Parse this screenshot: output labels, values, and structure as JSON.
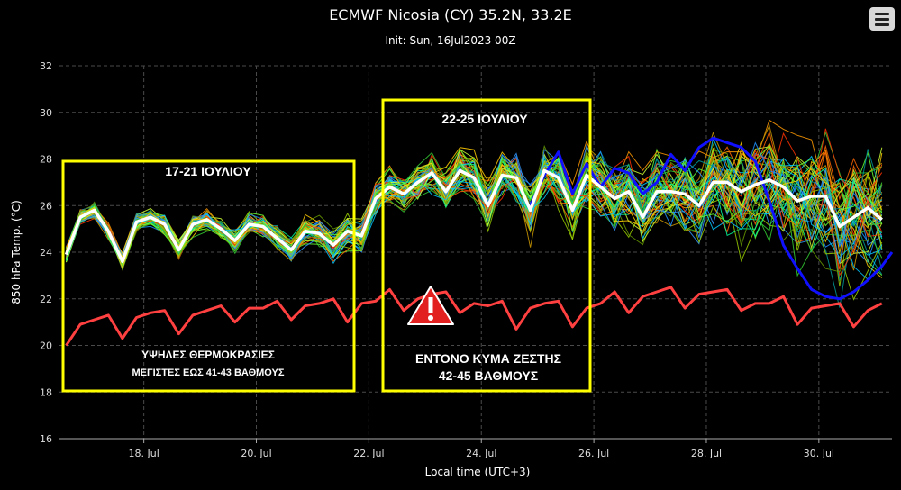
{
  "title": "ECMWF Nicosia (CY) 35.2N, 33.2E",
  "subtitle": "Init: Sun, 16Jul2023 00Z",
  "menu_icon": "hamburger-menu-icon",
  "colors": {
    "background": "#000000",
    "grid": "#555555",
    "mean": "#ffffff",
    "climate": "#ff4040",
    "highlight": "#ffff00",
    "control": "#1010ff"
  },
  "chart_data": {
    "type": "line",
    "xlabel": "Local time (UTC+3)",
    "ylabel": "850 hPa Temp. (°C)",
    "ylim": [
      16,
      32
    ],
    "yticks": [
      16,
      18,
      20,
      22,
      24,
      26,
      28,
      30,
      32
    ],
    "xlim_days": [
      16.5,
      31.3
    ],
    "xticks": [
      {
        "day": 18,
        "label": "18. Jul"
      },
      {
        "day": 20,
        "label": "20. Jul"
      },
      {
        "day": 22,
        "label": "22. Jul"
      },
      {
        "day": 24,
        "label": "24. Jul"
      },
      {
        "day": 26,
        "label": "26. Jul"
      },
      {
        "day": 28,
        "label": "28. Jul"
      },
      {
        "day": 30,
        "label": "30. Jul"
      }
    ],
    "grid": true,
    "legend": "none",
    "ensemble_members": 50,
    "series": [
      {
        "role": "ensemble-mean",
        "color": "#ffffff",
        "x": [
          16.62,
          16.87,
          17.12,
          17.37,
          17.62,
          17.87,
          18.12,
          18.37,
          18.62,
          18.87,
          19.12,
          19.37,
          19.62,
          19.87,
          20.12,
          20.37,
          20.62,
          20.87,
          21.12,
          21.37,
          21.62,
          21.87,
          22.12,
          22.37,
          22.62,
          22.87,
          23.12,
          23.37,
          23.62,
          23.87,
          24.12,
          24.37,
          24.62,
          24.87,
          25.12,
          25.37,
          25.62,
          25.87,
          26.12,
          26.37,
          26.62,
          26.87,
          27.12,
          27.37,
          27.62,
          27.87,
          28.12,
          28.37,
          28.62,
          28.87,
          29.12,
          29.37,
          29.62,
          29.87,
          30.12,
          30.37,
          30.62,
          30.87,
          31.12
        ],
        "y": [
          23.9,
          25.5,
          25.8,
          24.9,
          23.6,
          25.3,
          25.5,
          25.2,
          24.1,
          25.2,
          25.4,
          25.0,
          24.5,
          25.2,
          25.1,
          24.6,
          24.1,
          24.9,
          24.8,
          24.3,
          24.9,
          24.7,
          26.3,
          26.8,
          26.5,
          27.0,
          27.4,
          26.6,
          27.5,
          27.2,
          26.0,
          27.3,
          27.2,
          25.8,
          27.5,
          27.2,
          25.8,
          27.3,
          26.8,
          26.3,
          26.6,
          25.5,
          26.6,
          26.6,
          26.5,
          26.0,
          27.0,
          27.0,
          26.6,
          26.9,
          27.1,
          26.8,
          26.2,
          26.4,
          26.4,
          25.1,
          25.5,
          25.9,
          25.4
        ]
      },
      {
        "role": "climatology",
        "color": "#ff4040",
        "x": [
          16.62,
          16.87,
          17.12,
          17.37,
          17.62,
          17.87,
          18.12,
          18.37,
          18.62,
          18.87,
          19.12,
          19.37,
          19.62,
          19.87,
          20.12,
          20.37,
          20.62,
          20.87,
          21.12,
          21.37,
          21.62,
          21.87,
          22.12,
          22.37,
          22.62,
          22.87,
          23.12,
          23.37,
          23.62,
          23.87,
          24.12,
          24.37,
          24.62,
          24.87,
          25.12,
          25.37,
          25.62,
          25.87,
          26.12,
          26.37,
          26.62,
          26.87,
          27.12,
          27.37,
          27.62,
          27.87,
          28.12,
          28.37,
          28.62,
          28.87,
          29.12,
          29.37,
          29.62,
          29.87,
          30.12,
          30.37,
          30.62,
          30.87,
          31.12
        ],
        "y": [
          20.0,
          20.9,
          21.1,
          21.3,
          20.3,
          21.2,
          21.4,
          21.5,
          20.5,
          21.3,
          21.5,
          21.7,
          21.0,
          21.6,
          21.6,
          21.9,
          21.1,
          21.7,
          21.8,
          22.0,
          21.0,
          21.8,
          21.9,
          22.4,
          21.5,
          22.0,
          22.2,
          22.3,
          21.4,
          21.8,
          21.7,
          21.9,
          20.7,
          21.6,
          21.8,
          21.9,
          20.8,
          21.6,
          21.8,
          22.3,
          21.4,
          22.1,
          22.3,
          22.5,
          21.6,
          22.2,
          22.3,
          22.4,
          21.5,
          21.8,
          21.8,
          22.1,
          20.9,
          21.6,
          21.7,
          21.8,
          20.8,
          21.5,
          21.8
        ]
      },
      {
        "role": "control",
        "color": "#1010ff",
        "x": [
          24.87,
          25.12,
          25.37,
          25.62,
          25.87,
          26.12,
          26.37,
          26.62,
          26.87,
          27.12,
          27.37,
          27.62,
          27.87,
          28.12,
          28.37,
          28.62,
          28.87,
          29.12,
          29.37,
          29.62,
          29.87,
          30.12,
          30.37,
          30.62,
          30.87,
          31.12,
          31.3
        ],
        "y": [
          26.0,
          27.3,
          28.3,
          26.5,
          27.8,
          26.8,
          27.6,
          27.4,
          26.5,
          27.0,
          28.2,
          27.5,
          28.5,
          28.9,
          28.7,
          28.5,
          27.9,
          26.2,
          24.3,
          23.3,
          22.4,
          22.1,
          22.0,
          22.3,
          22.8,
          23.4,
          24.0
        ]
      }
    ]
  },
  "annotations": {
    "box1": {
      "heading": "17-21 ΙΟΥΛΙΟΥ",
      "line1": "ΥΨΗΛΕΣ ΘΕΡΜΟΚΡΑΣΙΕΣ",
      "line2": "ΜΕΓΙΣΤΕΣ ΕΩΣ 41-43 ΒΑΘΜΟΥΣ"
    },
    "box2": {
      "heading": "22-25 ΙΟΥΛΙΟΥ",
      "line1": "ΕΝΤΟΝΟ ΚΥΜΑ ΖΕΣΤΗΣ",
      "line2": "42-45 ΒΑΘΜΟΥΣ"
    },
    "warning_icon": "warning-triangle-icon"
  }
}
